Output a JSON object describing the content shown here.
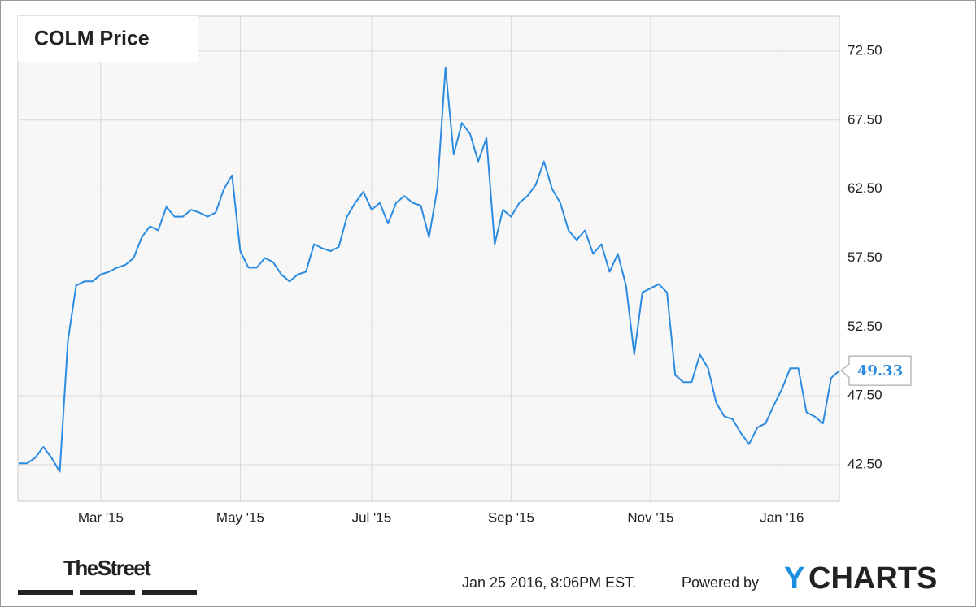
{
  "chart_data": {
    "type": "line",
    "title": "COLM Price",
    "categories": [
      null,
      null,
      null,
      null,
      null,
      null,
      null,
      null,
      null,
      null,
      "Mar '15",
      null,
      null,
      null,
      null,
      null,
      null,
      null,
      null,
      null,
      null,
      null,
      null,
      null,
      null,
      null,
      null,
      "May '15",
      null,
      null,
      null,
      null,
      null,
      null,
      null,
      null,
      null,
      null,
      null,
      null,
      null,
      null,
      null,
      "Jul '15",
      null,
      null,
      null,
      null,
      null,
      null,
      null,
      null,
      null,
      null,
      null,
      null,
      null,
      null,
      null,
      null,
      "Sep '15",
      null,
      null,
      null,
      null,
      null,
      null,
      null,
      null,
      null,
      null,
      null,
      null,
      null,
      null,
      null,
      null,
      "Nov '15",
      null,
      null,
      null,
      null,
      null,
      null,
      null,
      null,
      null,
      null,
      null,
      null,
      null,
      null,
      null,
      "Jan '16",
      null,
      null,
      null,
      null,
      null,
      null,
      null
    ],
    "values": [
      42.6,
      42.6,
      43.0,
      43.8,
      43.0,
      42.0,
      51.5,
      55.5,
      55.8,
      55.8,
      56.3,
      56.5,
      56.8,
      57.0,
      57.5,
      59.0,
      59.8,
      59.5,
      61.2,
      60.5,
      60.5,
      61.0,
      60.8,
      60.5,
      60.8,
      62.5,
      63.5,
      58.0,
      56.8,
      56.8,
      57.5,
      57.2,
      56.3,
      55.8,
      56.3,
      56.5,
      58.5,
      58.2,
      58.0,
      58.3,
      60.5,
      61.5,
      62.3,
      61.0,
      61.5,
      60.0,
      61.5,
      62.0,
      61.5,
      61.3,
      59.0,
      62.5,
      71.3,
      65.0,
      67.3,
      66.5,
      64.5,
      66.2,
      58.5,
      61.0,
      60.5,
      61.5,
      62.0,
      62.8,
      64.5,
      62.5,
      61.5,
      59.5,
      58.8,
      59.5,
      57.8,
      58.5,
      56.5,
      57.8,
      55.5,
      50.5,
      55.0,
      55.3,
      55.6,
      55.0,
      49.0,
      48.5,
      48.5,
      50.5,
      49.5,
      47.0,
      46.0,
      45.8,
      44.8,
      44.0,
      45.2,
      45.5,
      46.8,
      48.0,
      49.5,
      49.5,
      46.3,
      46.0,
      45.5,
      48.8,
      49.33
    ],
    "color": "#2b8be0",
    "ylim": [
      39.85,
      75.03
    ],
    "yticks": [
      {
        "value": 42.5,
        "label": "42.50"
      },
      {
        "value": 47.5,
        "label": "47.50"
      },
      {
        "value": 52.5,
        "label": "52.50"
      },
      {
        "value": 57.5,
        "label": "57.50"
      },
      {
        "value": 62.5,
        "label": "62.50"
      },
      {
        "value": 67.5,
        "label": "67.50"
      },
      {
        "value": 72.5,
        "label": "72.50"
      }
    ],
    "grid": true,
    "footer": {
      "source_logo": "TheStreet",
      "timestamp": "Jan 25 2016, 8:06PM EST.",
      "powered_by": "Powered by",
      "logo_y": "Y",
      "logo_rest": "CHARTS"
    }
  }
}
